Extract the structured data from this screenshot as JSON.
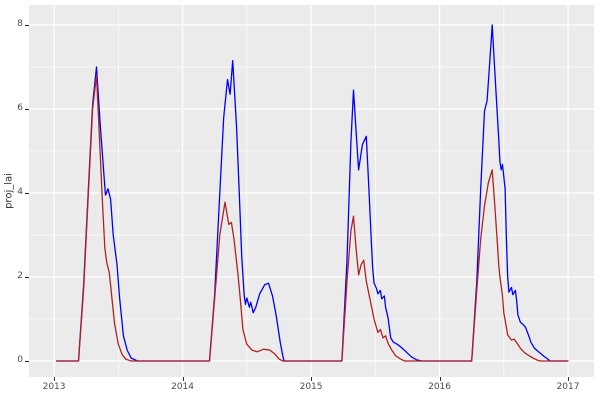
{
  "figure": {
    "background": "#ffffff",
    "panel_background": "#ebebeb",
    "grid_major_color": "#ffffff",
    "grid_minor_color": "#ffffff",
    "axis_text_color": "#4d4d4d",
    "axis_title_color": "#333333",
    "tick_mark_color": "#333333"
  },
  "chart_data": {
    "type": "line",
    "title": "",
    "xlabel": "",
    "ylabel": "proj_lai",
    "legend": "none",
    "grid": true,
    "xlim": [
      2012.805,
      2017.202
    ],
    "ylim": [
      -0.381,
      8.476
    ],
    "x_ticks": [
      2013,
      2014,
      2015,
      2016,
      2017
    ],
    "x_tick_labels": [
      "2013",
      "2014",
      "2015",
      "2016",
      "2017"
    ],
    "x_minor": [
      2013.5,
      2014.5,
      2015.5,
      2016.5
    ],
    "y_ticks": [
      0,
      2,
      4,
      6,
      8
    ],
    "y_tick_labels": [
      "0",
      "2",
      "4",
      "6",
      "8"
    ],
    "y_minor": [
      1,
      3,
      5,
      7
    ],
    "series": [
      {
        "name": "series-blue",
        "color": "#0000ff",
        "points": [
          [
            2013.02,
            0
          ],
          [
            2013.19,
            0
          ],
          [
            2013.23,
            1.8
          ],
          [
            2013.27,
            4.3
          ],
          [
            2013.3,
            6.1
          ],
          [
            2013.33,
            7.0
          ],
          [
            2013.36,
            5.6
          ],
          [
            2013.39,
            4.35
          ],
          [
            2013.4,
            3.95
          ],
          [
            2013.42,
            4.1
          ],
          [
            2013.44,
            3.85
          ],
          [
            2013.46,
            3.0
          ],
          [
            2013.49,
            2.3
          ],
          [
            2013.51,
            1.5
          ],
          [
            2013.54,
            0.6
          ],
          [
            2013.57,
            0.25
          ],
          [
            2013.6,
            0.07
          ],
          [
            2013.65,
            0
          ],
          [
            2014.21,
            0
          ],
          [
            2014.25,
            1.6
          ],
          [
            2014.29,
            4.0
          ],
          [
            2014.32,
            5.8
          ],
          [
            2014.35,
            6.7
          ],
          [
            2014.37,
            6.35
          ],
          [
            2014.39,
            7.15
          ],
          [
            2014.42,
            5.6
          ],
          [
            2014.44,
            4.1
          ],
          [
            2014.46,
            2.5
          ],
          [
            2014.48,
            1.55
          ],
          [
            2014.49,
            1.35
          ],
          [
            2014.5,
            1.5
          ],
          [
            2014.52,
            1.28
          ],
          [
            2014.53,
            1.4
          ],
          [
            2014.55,
            1.15
          ],
          [
            2014.57,
            1.28
          ],
          [
            2014.6,
            1.6
          ],
          [
            2014.64,
            1.82
          ],
          [
            2014.67,
            1.85
          ],
          [
            2014.7,
            1.55
          ],
          [
            2014.73,
            1.05
          ],
          [
            2014.76,
            0.45
          ],
          [
            2014.78,
            0.12
          ],
          [
            2014.79,
            0
          ],
          [
            2015.24,
            0
          ],
          [
            2015.28,
            2.4
          ],
          [
            2015.31,
            5.2
          ],
          [
            2015.33,
            6.45
          ],
          [
            2015.35,
            5.5
          ],
          [
            2015.37,
            4.55
          ],
          [
            2015.4,
            5.15
          ],
          [
            2015.43,
            5.35
          ],
          [
            2015.45,
            4.1
          ],
          [
            2015.47,
            2.8
          ],
          [
            2015.48,
            2.2
          ],
          [
            2015.49,
            1.86
          ],
          [
            2015.51,
            1.72
          ],
          [
            2015.52,
            1.6
          ],
          [
            2015.54,
            1.68
          ],
          [
            2015.55,
            1.48
          ],
          [
            2015.57,
            1.55
          ],
          [
            2015.58,
            1.28
          ],
          [
            2015.6,
            1.02
          ],
          [
            2015.62,
            0.55
          ],
          [
            2015.64,
            0.45
          ],
          [
            2015.67,
            0.4
          ],
          [
            2015.7,
            0.33
          ],
          [
            2015.74,
            0.22
          ],
          [
            2015.78,
            0.1
          ],
          [
            2015.82,
            0.03
          ],
          [
            2015.86,
            0
          ],
          [
            2016.25,
            0
          ],
          [
            2016.29,
            1.9
          ],
          [
            2016.32,
            4.1
          ],
          [
            2016.35,
            5.95
          ],
          [
            2016.37,
            6.2
          ],
          [
            2016.39,
            7.1
          ],
          [
            2016.41,
            8.0
          ],
          [
            2016.43,
            6.9
          ],
          [
            2016.46,
            5.3
          ],
          [
            2016.47,
            4.75
          ],
          [
            2016.48,
            4.55
          ],
          [
            2016.49,
            4.68
          ],
          [
            2016.51,
            4.1
          ],
          [
            2016.52,
            2.9
          ],
          [
            2016.53,
            2.0
          ],
          [
            2016.54,
            1.64
          ],
          [
            2016.56,
            1.75
          ],
          [
            2016.57,
            1.58
          ],
          [
            2016.59,
            1.68
          ],
          [
            2016.6,
            1.45
          ],
          [
            2016.61,
            1.1
          ],
          [
            2016.63,
            0.92
          ],
          [
            2016.65,
            0.87
          ],
          [
            2016.67,
            0.8
          ],
          [
            2016.7,
            0.55
          ],
          [
            2016.71,
            0.45
          ],
          [
            2016.74,
            0.3
          ],
          [
            2016.77,
            0.22
          ],
          [
            2016.81,
            0.12
          ],
          [
            2016.84,
            0.05
          ],
          [
            2016.86,
            0
          ],
          [
            2017.0,
            0
          ]
        ]
      },
      {
        "name": "series-red",
        "color": "#b22222",
        "points": [
          [
            2013.02,
            0
          ],
          [
            2013.19,
            0
          ],
          [
            2013.23,
            1.7
          ],
          [
            2013.27,
            4.2
          ],
          [
            2013.3,
            6.0
          ],
          [
            2013.33,
            6.8
          ],
          [
            2013.355,
            5.2
          ],
          [
            2013.375,
            3.9
          ],
          [
            2013.395,
            2.7
          ],
          [
            2013.41,
            2.35
          ],
          [
            2013.43,
            2.1
          ],
          [
            2013.45,
            1.5
          ],
          [
            2013.47,
            0.9
          ],
          [
            2013.5,
            0.4
          ],
          [
            2013.53,
            0.15
          ],
          [
            2013.56,
            0.04
          ],
          [
            2013.6,
            0
          ],
          [
            2014.21,
            0
          ],
          [
            2014.25,
            1.5
          ],
          [
            2014.29,
            3.0
          ],
          [
            2014.33,
            3.78
          ],
          [
            2014.36,
            3.25
          ],
          [
            2014.38,
            3.3
          ],
          [
            2014.4,
            2.9
          ],
          [
            2014.43,
            2.1
          ],
          [
            2014.45,
            1.45
          ],
          [
            2014.47,
            0.75
          ],
          [
            2014.5,
            0.4
          ],
          [
            2014.54,
            0.26
          ],
          [
            2014.58,
            0.22
          ],
          [
            2014.63,
            0.28
          ],
          [
            2014.68,
            0.26
          ],
          [
            2014.72,
            0.16
          ],
          [
            2014.75,
            0.05
          ],
          [
            2014.78,
            0
          ],
          [
            2015.24,
            0
          ],
          [
            2015.28,
            1.9
          ],
          [
            2015.31,
            3.1
          ],
          [
            2015.33,
            3.45
          ],
          [
            2015.35,
            2.7
          ],
          [
            2015.37,
            2.05
          ],
          [
            2015.39,
            2.3
          ],
          [
            2015.41,
            2.4
          ],
          [
            2015.43,
            1.9
          ],
          [
            2015.46,
            1.45
          ],
          [
            2015.49,
            1.0
          ],
          [
            2015.52,
            0.68
          ],
          [
            2015.54,
            0.75
          ],
          [
            2015.56,
            0.55
          ],
          [
            2015.58,
            0.6
          ],
          [
            2015.6,
            0.42
          ],
          [
            2015.63,
            0.25
          ],
          [
            2015.66,
            0.12
          ],
          [
            2015.7,
            0.04
          ],
          [
            2015.73,
            0
          ],
          [
            2016.25,
            0
          ],
          [
            2016.29,
            1.7
          ],
          [
            2016.32,
            2.9
          ],
          [
            2016.35,
            3.7
          ],
          [
            2016.38,
            4.25
          ],
          [
            2016.41,
            4.55
          ],
          [
            2016.43,
            3.7
          ],
          [
            2016.45,
            2.8
          ],
          [
            2016.46,
            2.3
          ],
          [
            2016.47,
            2.0
          ],
          [
            2016.49,
            1.55
          ],
          [
            2016.5,
            1.15
          ],
          [
            2016.52,
            0.8
          ],
          [
            2016.53,
            0.62
          ],
          [
            2016.56,
            0.5
          ],
          [
            2016.58,
            0.52
          ],
          [
            2016.6,
            0.44
          ],
          [
            2016.63,
            0.3
          ],
          [
            2016.66,
            0.2
          ],
          [
            2016.7,
            0.12
          ],
          [
            2016.74,
            0.05
          ],
          [
            2016.77,
            0.01
          ],
          [
            2016.79,
            0
          ],
          [
            2017.0,
            0
          ]
        ]
      }
    ]
  }
}
